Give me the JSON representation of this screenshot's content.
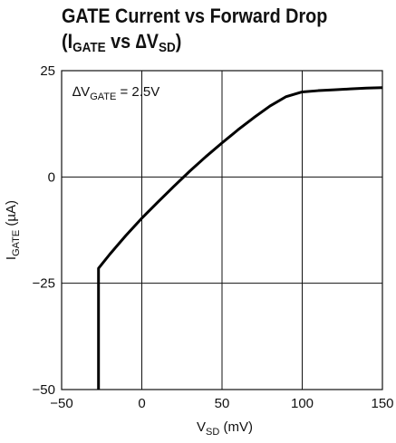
{
  "chart_data": {
    "type": "line",
    "title_line1": "GATE Current vs Forward Drop",
    "title_line2_prefix": "(I",
    "title_line2_sub1": "GATE",
    "title_line2_mid": " vs ∆V",
    "title_line2_sub2": "SD",
    "title_line2_suffix": ")",
    "xlabel_main": "V",
    "xlabel_sub": "SD",
    "xlabel_unit": " (mV)",
    "ylabel_main": "I",
    "ylabel_sub": "GATE",
    "ylabel_unit": " (µA)",
    "annotation_main": "∆V",
    "annotation_sub": "GATE",
    "annotation_value": " = 2.5V",
    "xlim": [
      -50,
      150
    ],
    "ylim": [
      -50,
      25
    ],
    "xticks": [
      -50,
      0,
      50,
      100,
      150
    ],
    "xtick_labels": [
      "−50",
      "0",
      "50",
      "100",
      "150"
    ],
    "yticks": [
      25,
      0,
      -25,
      -50
    ],
    "ytick_labels": [
      "25",
      "0",
      "−25",
      "−50"
    ],
    "grid": true,
    "series": [
      {
        "x": [
          -27,
          -27,
          -20,
          -10,
          0,
          10,
          20,
          30,
          40,
          50,
          60,
          70,
          80,
          90,
          100,
          110,
          120,
          130,
          140,
          150
        ],
        "y": [
          -50,
          -21.5,
          -18.2,
          -13.8,
          -9.7,
          -5.9,
          -2.2,
          1.4,
          4.8,
          8,
          11.1,
          14.0,
          16.7,
          18.9,
          20,
          20.3,
          20.5,
          20.7,
          20.9,
          21
        ]
      }
    ]
  }
}
